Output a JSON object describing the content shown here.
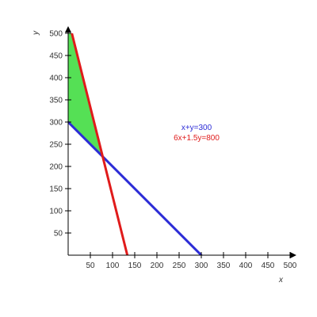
{
  "chart_data": {
    "type": "line",
    "xlabel": "x",
    "ylabel": "y",
    "xlim": [
      0,
      500
    ],
    "ylim": [
      0,
      500
    ],
    "x_ticks": [
      50,
      100,
      150,
      200,
      250,
      300,
      350,
      400,
      450,
      500
    ],
    "y_ticks": [
      50,
      100,
      150,
      200,
      250,
      300,
      350,
      400,
      450,
      500
    ],
    "grid": false,
    "series": [
      {
        "name": "x+y=300",
        "color": "#2b2bd6",
        "points": [
          [
            0,
            300
          ],
          [
            300,
            0
          ]
        ]
      },
      {
        "name": "6x+1.5y=800",
        "color": "#e01b1b",
        "points": [
          [
            0,
            533.33
          ],
          [
            133.33,
            0
          ]
        ]
      }
    ],
    "feasible_region": {
      "color": "#55e055",
      "points": [
        [
          0,
          300
        ],
        [
          0,
          500
        ],
        [
          8.33,
          500
        ],
        [
          77.78,
          222.22
        ]
      ]
    },
    "legend_placement": "center-right"
  }
}
